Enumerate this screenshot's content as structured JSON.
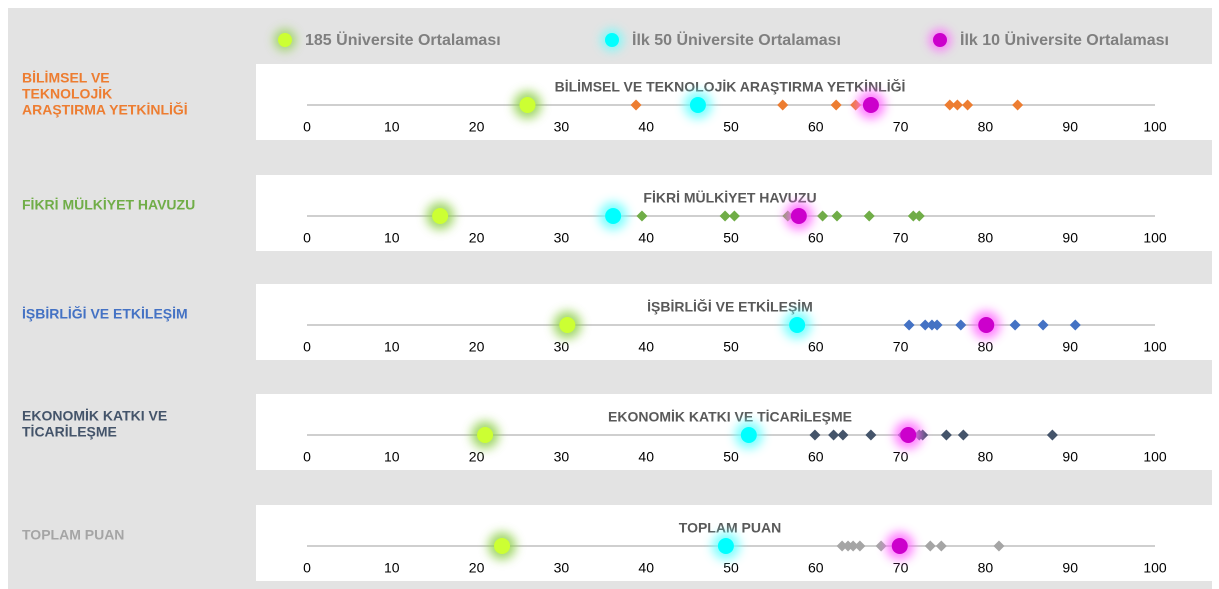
{
  "legend": [
    {
      "name": "185 Üniversite Ortalaması",
      "color": "#ccff33",
      "glow": "#92d050"
    },
    {
      "name": "İlk 50 Üniversite Ortalaması",
      "color": "#00ffff",
      "glow": "#66ffff"
    },
    {
      "name": "İlk 10 Üniversite Ortalaması",
      "color": "#cc00cc",
      "glow": "#ff66ff"
    }
  ],
  "chart_data": [
    {
      "type": "scatter",
      "label": [
        "BİLİMSEL VE",
        "TEKNOLOJİK",
        "ARAŞTIRMA YETKİNLİĞİ"
      ],
      "title": "BİLİMSEL VE TEKNOLOJİK ARAŞTIRMA YETKİNLİĞİ",
      "color": "#ed7d31",
      "values": [
        38.8,
        56.1,
        62.4,
        64.7,
        75.8,
        76.7,
        77.9,
        83.8
      ],
      "averages": [
        26,
        46.1,
        66.5
      ],
      "xlim": [
        0,
        100
      ],
      "xticks": [
        0,
        10,
        20,
        30,
        40,
        50,
        60,
        70,
        80,
        90,
        100
      ]
    },
    {
      "type": "scatter",
      "label": [
        "FİKRİ MÜLKİYET HAVUZU"
      ],
      "title": "FİKRİ MÜLKİYET HAVUZU",
      "color": "#70ad47",
      "values": [
        39.5,
        49.3,
        50.4,
        56.7,
        60.8,
        62.5,
        66.3,
        71.5,
        72.2
      ],
      "averages": [
        15.7,
        36.1,
        58
      ],
      "xlim": [
        0,
        100
      ],
      "xticks": [
        0,
        10,
        20,
        30,
        40,
        50,
        60,
        70,
        80,
        90,
        100
      ]
    },
    {
      "type": "scatter",
      "label": [
        "İŞBİRLİĞİ VE ETKİLEŞİM"
      ],
      "title": "İŞBİRLİĞİ VE ETKİLEŞİM",
      "color": "#4472c4",
      "values": [
        71,
        72.9,
        73.7,
        74.3,
        77.1,
        83.5,
        86.8,
        90.6
      ],
      "averages": [
        30.7,
        57.8,
        80.1
      ],
      "xlim": [
        0,
        100
      ],
      "xticks": [
        0,
        10,
        20,
        30,
        40,
        50,
        60,
        70,
        80,
        90,
        100
      ]
    },
    {
      "type": "scatter",
      "label": [
        "EKONOMİK KATKI VE",
        "TİCARİLEŞME"
      ],
      "title": "EKONOMİK KATKI VE TİCARİLEŞME",
      "color": "#44546a",
      "values": [
        59.9,
        62.1,
        63.2,
        66.5,
        70.3,
        72.2,
        72.6,
        75.4,
        77.4,
        87.9
      ],
      "averages": [
        21,
        52.1,
        70.9
      ],
      "xlim": [
        0,
        100
      ],
      "xticks": [
        0,
        10,
        20,
        30,
        40,
        50,
        60,
        70,
        80,
        90,
        100
      ]
    },
    {
      "type": "scatter",
      "label": [
        "TOPLAM PUAN"
      ],
      "title": "TOPLAM PUAN",
      "color": "#a5a5a5",
      "values": [
        63.1,
        63.8,
        64.4,
        65.2,
        67.7,
        73.5,
        74.8,
        81.6
      ],
      "averages": [
        23,
        49.4,
        69.9
      ],
      "xlim": [
        0,
        100
      ],
      "xticks": [
        0,
        10,
        20,
        30,
        40,
        50,
        60,
        70,
        80,
        90,
        100
      ]
    }
  ]
}
